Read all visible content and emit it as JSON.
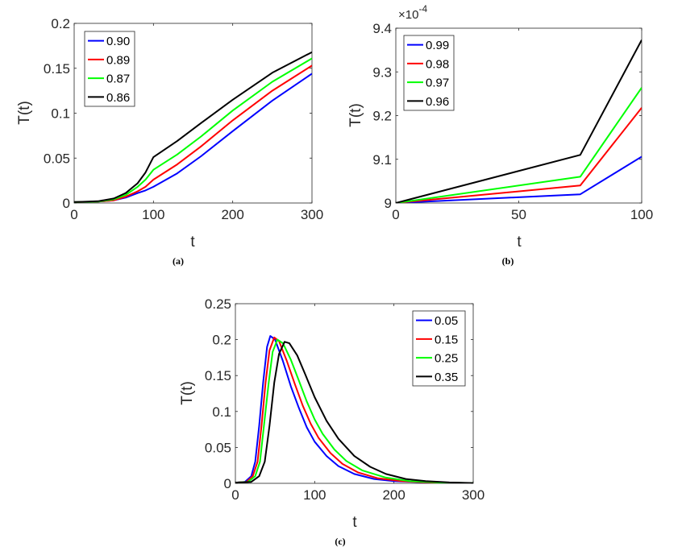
{
  "colors": {
    "blue": "#0000ff",
    "red": "#ff0000",
    "green": "#00ff00",
    "black": "#000000"
  },
  "chart_data": [
    {
      "id": "a",
      "type": "line",
      "caption": "(a)",
      "xlabel": "t",
      "ylabel": "T(t)",
      "xlim": [
        0,
        300
      ],
      "ylim": [
        0,
        0.2
      ],
      "xticks": [
        0,
        100,
        200,
        300
      ],
      "xticklabels": [
        "0",
        "100",
        "200",
        "300"
      ],
      "yticks": [
        0,
        0.05,
        0.1,
        0.15,
        0.2
      ],
      "yticklabels": [
        "0",
        "0.05",
        "0.1",
        "0.15",
        "0.2"
      ],
      "legend_position": "top-left",
      "series": [
        {
          "name": "0.90",
          "color": "#0000ff",
          "x": [
            0,
            30,
            50,
            65,
            80,
            90,
            100,
            130,
            160,
            200,
            250,
            300
          ],
          "y": [
            0.001,
            0.0015,
            0.003,
            0.006,
            0.011,
            0.014,
            0.018,
            0.033,
            0.052,
            0.08,
            0.114,
            0.144
          ]
        },
        {
          "name": "0.89",
          "color": "#ff0000",
          "x": [
            0,
            30,
            50,
            65,
            80,
            90,
            100,
            130,
            160,
            200,
            250,
            300
          ],
          "y": [
            0.001,
            0.0015,
            0.003,
            0.007,
            0.013,
            0.018,
            0.026,
            0.043,
            0.063,
            0.092,
            0.125,
            0.153
          ]
        },
        {
          "name": "0.87",
          "color": "#00ff00",
          "x": [
            0,
            30,
            50,
            65,
            80,
            90,
            100,
            130,
            160,
            200,
            250,
            300
          ],
          "y": [
            0.001,
            0.0015,
            0.004,
            0.009,
            0.018,
            0.026,
            0.037,
            0.054,
            0.074,
            0.103,
            0.135,
            0.161
          ]
        },
        {
          "name": "0.86",
          "color": "#000000",
          "x": [
            0,
            30,
            50,
            65,
            80,
            90,
            100,
            130,
            160,
            200,
            250,
            300
          ],
          "y": [
            0.001,
            0.002,
            0.005,
            0.011,
            0.022,
            0.034,
            0.051,
            0.069,
            0.089,
            0.115,
            0.145,
            0.168
          ]
        }
      ]
    },
    {
      "id": "b",
      "type": "line",
      "caption": "(b)",
      "xlabel": "t",
      "ylabel": "T(t)",
      "y_exponent_base": "×10",
      "y_exponent_power": "-4",
      "xlim": [
        0,
        100
      ],
      "ylim": [
        9.0,
        9.4
      ],
      "xticks": [
        0,
        50,
        100
      ],
      "xticklabels": [
        "0",
        "50",
        "100"
      ],
      "yticks": [
        9.0,
        9.1,
        9.2,
        9.3,
        9.4
      ],
      "yticklabels": [
        "9",
        "9.1",
        "9.2",
        "9.3",
        "9.4"
      ],
      "legend_position": "top-left",
      "series": [
        {
          "name": "0.99",
          "color": "#0000ff",
          "x": [
            0,
            75,
            100
          ],
          "y": [
            9.0,
            9.02,
            9.106
          ]
        },
        {
          "name": "0.98",
          "color": "#ff0000",
          "x": [
            0,
            75,
            100
          ],
          "y": [
            9.0,
            9.04,
            9.218
          ]
        },
        {
          "name": "0.97",
          "color": "#00ff00",
          "x": [
            0,
            75,
            100
          ],
          "y": [
            9.0,
            9.06,
            9.264
          ]
        },
        {
          "name": "0.96",
          "color": "#000000",
          "x": [
            0,
            75,
            100
          ],
          "y": [
            9.0,
            9.11,
            9.373
          ]
        }
      ]
    },
    {
      "id": "c",
      "type": "line",
      "caption": "(c)",
      "xlabel": "t",
      "ylabel": "T(t)",
      "xlim": [
        0,
        300
      ],
      "ylim": [
        0,
        0.25
      ],
      "xticks": [
        0,
        100,
        200,
        300
      ],
      "xticklabels": [
        "0",
        "100",
        "200",
        "300"
      ],
      "yticks": [
        0,
        0.05,
        0.1,
        0.15,
        0.2,
        0.25
      ],
      "yticklabels": [
        "0",
        "0.05",
        "0.1",
        "0.15",
        "0.2",
        "0.25"
      ],
      "legend_position": "top-right",
      "series": [
        {
          "name": "0.05",
          "color": "#0000ff",
          "x": [
            0,
            12,
            20,
            25,
            30,
            35,
            40,
            44,
            50,
            60,
            70,
            80,
            90,
            100,
            115,
            130,
            150,
            175,
            200,
            250,
            300
          ],
          "y": [
            0.001,
            0.002,
            0.01,
            0.03,
            0.08,
            0.14,
            0.19,
            0.205,
            0.2,
            0.17,
            0.135,
            0.105,
            0.078,
            0.058,
            0.038,
            0.024,
            0.013,
            0.006,
            0.003,
            0.001,
            0.0005
          ]
        },
        {
          "name": "0.15",
          "color": "#ff0000",
          "x": [
            0,
            14,
            22,
            28,
            33,
            38,
            43,
            49,
            55,
            65,
            75,
            85,
            95,
            105,
            120,
            135,
            155,
            180,
            210,
            250,
            300
          ],
          "y": [
            0.001,
            0.002,
            0.01,
            0.03,
            0.08,
            0.14,
            0.185,
            0.203,
            0.198,
            0.17,
            0.138,
            0.108,
            0.083,
            0.063,
            0.042,
            0.027,
            0.015,
            0.007,
            0.003,
            0.001,
            0.0005
          ]
        },
        {
          "name": "0.25",
          "color": "#00ff00",
          "x": [
            0,
            16,
            25,
            31,
            36,
            42,
            47,
            53,
            60,
            70,
            80,
            90,
            100,
            110,
            125,
            140,
            160,
            190,
            220,
            260,
            300
          ],
          "y": [
            0.001,
            0.002,
            0.01,
            0.03,
            0.08,
            0.14,
            0.183,
            0.2,
            0.195,
            0.172,
            0.143,
            0.114,
            0.089,
            0.069,
            0.047,
            0.031,
            0.018,
            0.008,
            0.003,
            0.001,
            0.0005
          ]
        },
        {
          "name": "0.35",
          "color": "#000000",
          "x": [
            0,
            20,
            30,
            37,
            43,
            49,
            55,
            62,
            68,
            78,
            88,
            100,
            115,
            130,
            150,
            170,
            190,
            215,
            240,
            270,
            300
          ],
          "y": [
            0.001,
            0.002,
            0.01,
            0.03,
            0.08,
            0.14,
            0.18,
            0.197,
            0.195,
            0.178,
            0.152,
            0.12,
            0.087,
            0.062,
            0.038,
            0.023,
            0.013,
            0.006,
            0.003,
            0.0012,
            0.0005
          ]
        }
      ]
    }
  ]
}
